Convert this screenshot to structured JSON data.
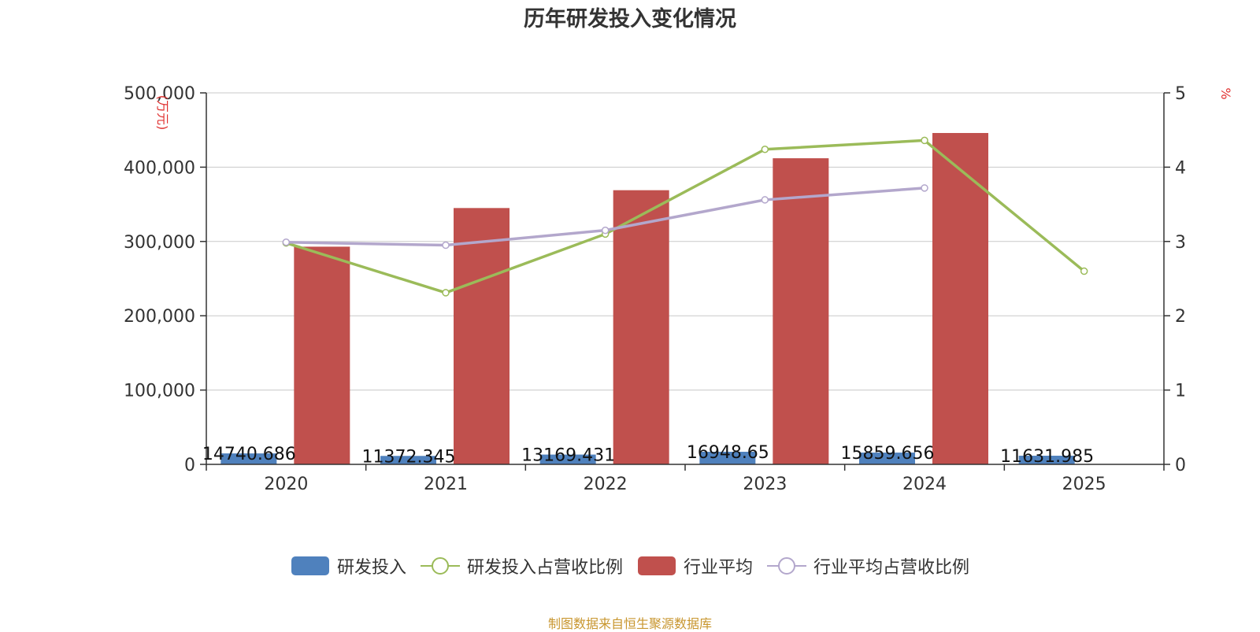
{
  "chart_data": {
    "type": "bar",
    "title": "历年研发投入变化情况",
    "categories": [
      "2020",
      "2021",
      "2022",
      "2023",
      "2024",
      "2025"
    ],
    "left_axis": {
      "unit": "(万元)",
      "min": 0,
      "max": 500000,
      "ticks": [
        "0",
        "100,000",
        "200,000",
        "300,000",
        "400,000",
        "500,000"
      ]
    },
    "right_axis": {
      "unit": "%",
      "min": 0,
      "max": 5,
      "ticks": [
        "0",
        "1",
        "2",
        "3",
        "4",
        "5"
      ]
    },
    "series": [
      {
        "name": "研发投入",
        "type": "bar",
        "axis": "left",
        "color": "#4f81bd",
        "values": [
          14740.686,
          11372.345,
          13169.431,
          16948.65,
          15859.656,
          11631.985
        ],
        "labels": [
          "14740.686",
          "11372.345",
          "13169.431",
          "16948.65",
          "15859.656",
          "11631.985"
        ]
      },
      {
        "name": "研发投入占营收比例",
        "type": "line",
        "axis": "right",
        "color": "#9bbb59",
        "values": [
          2.98,
          2.31,
          3.1,
          4.24,
          4.36,
          2.6
        ]
      },
      {
        "name": "行业平均",
        "type": "bar",
        "axis": "left",
        "color": "#c0504d",
        "values": [
          293000,
          345000,
          369000,
          412000,
          446000,
          null
        ]
      },
      {
        "name": "行业平均占营收比例",
        "type": "line",
        "axis": "right",
        "color": "#b3a7cc",
        "values": [
          2.99,
          2.95,
          3.15,
          3.56,
          3.72,
          null
        ]
      }
    ],
    "grid": true,
    "legend_position": "bottom"
  },
  "source": "制图数据来自恒生聚源数据库"
}
